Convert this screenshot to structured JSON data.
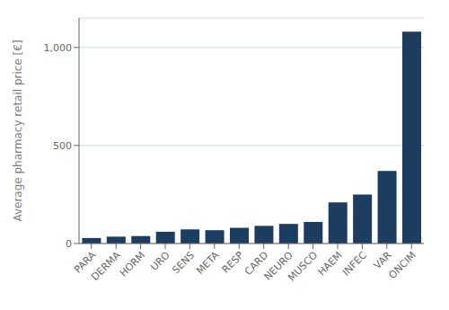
{
  "chart_data": {
    "type": "bar",
    "categories": [
      "PARA",
      "DERMA",
      "HORM",
      "URO",
      "SENS",
      "META",
      "RESP",
      "CARD",
      "NEURO",
      "MUSCO",
      "HAEM",
      "INFEC",
      "VAR",
      "ONCIM"
    ],
    "values": [
      28,
      35,
      38,
      60,
      72,
      68,
      80,
      90,
      100,
      110,
      210,
      250,
      370,
      1080
    ],
    "color": "#1d3d60",
    "ylabel": "Average pharmacy retail price [€]",
    "ylim": [
      0,
      1150
    ],
    "yticks": [
      0,
      500,
      {
        "value": 1000,
        "label": "1,000"
      }
    ],
    "grid": true
  }
}
